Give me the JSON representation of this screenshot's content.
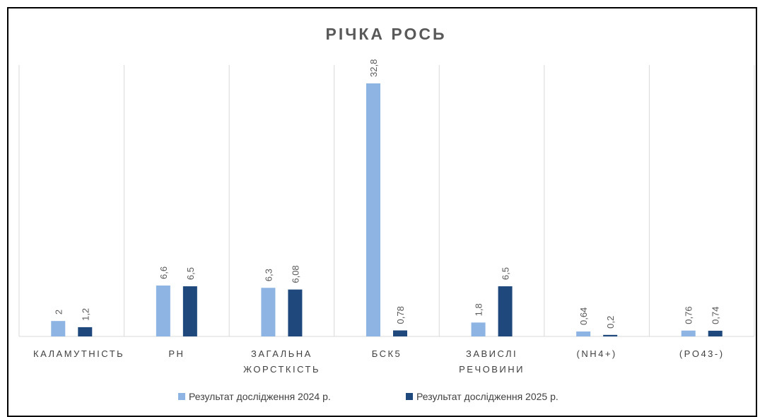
{
  "chart_data": {
    "type": "bar",
    "title": "РІЧКА РОСЬ",
    "categories": [
      "КАЛАМУТНІСТЬ",
      "PH",
      "ЗАГАЛЬНА ЖОРСТКІСТЬ",
      "БСК5",
      "ЗАВИСЛІ РЕЧОВИНИ",
      "(NH4+)",
      "(PO43-)"
    ],
    "series": [
      {
        "name": "Результат дослідження 2024 р.",
        "color": "#8eb4e3",
        "values": [
          2,
          6.6,
          6.3,
          32.8,
          1.8,
          0.64,
          0.76
        ],
        "value_labels": [
          "2",
          "6,6",
          "6,3",
          "32,8",
          "1,8",
          "0,64",
          "0,76"
        ]
      },
      {
        "name": "Результат дослідження 2025 р.",
        "color": "#1f497d",
        "values": [
          1.2,
          6.5,
          6.08,
          0.78,
          6.5,
          0.2,
          0.74
        ],
        "value_labels": [
          "1,2",
          "6,5",
          "6,08",
          "0,78",
          "6,5",
          "0,2",
          "0,74"
        ]
      }
    ],
    "legend": "bottom"
  }
}
